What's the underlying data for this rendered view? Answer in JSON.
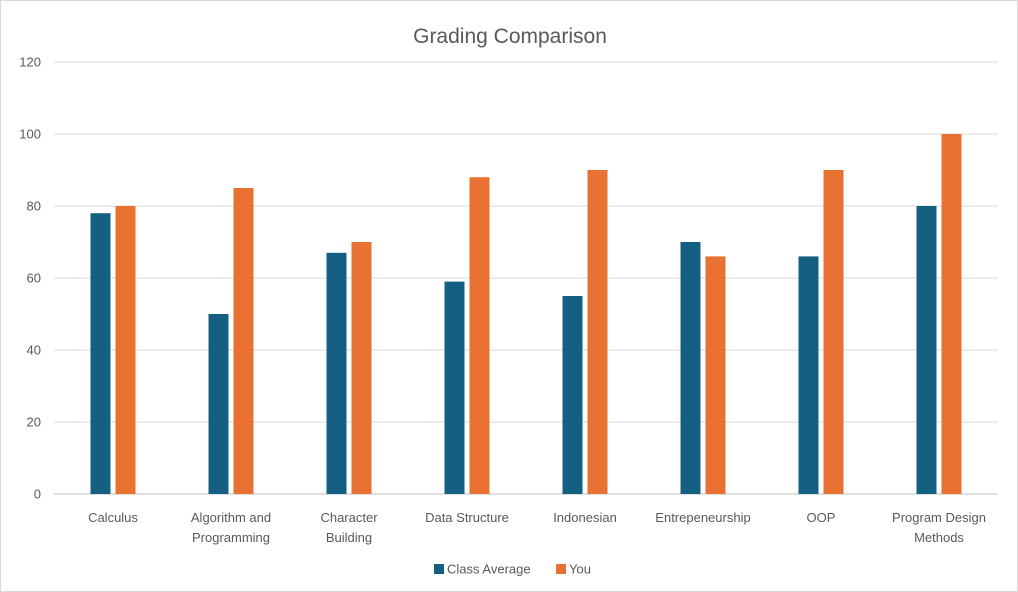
{
  "chart_data": {
    "type": "bar",
    "title": "Grading Comparison",
    "xlabel": "",
    "ylabel": "",
    "ylim": [
      0,
      120
    ],
    "yticks": [
      0,
      20,
      40,
      60,
      80,
      100,
      120
    ],
    "grid": true,
    "legend_position": "bottom",
    "categories": [
      [
        "Calculus"
      ],
      [
        "Algorithm and",
        "Programming"
      ],
      [
        "Character",
        "Building"
      ],
      [
        "Data Structure"
      ],
      [
        "Indonesian"
      ],
      [
        "Entrepeneurship"
      ],
      [
        "OOP"
      ],
      [
        "Program Design",
        "Methods"
      ]
    ],
    "series": [
      {
        "name": "Class Average",
        "color": "#156082",
        "values": [
          78,
          50,
          67,
          59,
          55,
          70,
          66,
          80
        ]
      },
      {
        "name": "You",
        "color": "#E97132",
        "values": [
          80,
          85,
          70,
          88,
          90,
          66,
          90,
          100
        ]
      }
    ]
  }
}
